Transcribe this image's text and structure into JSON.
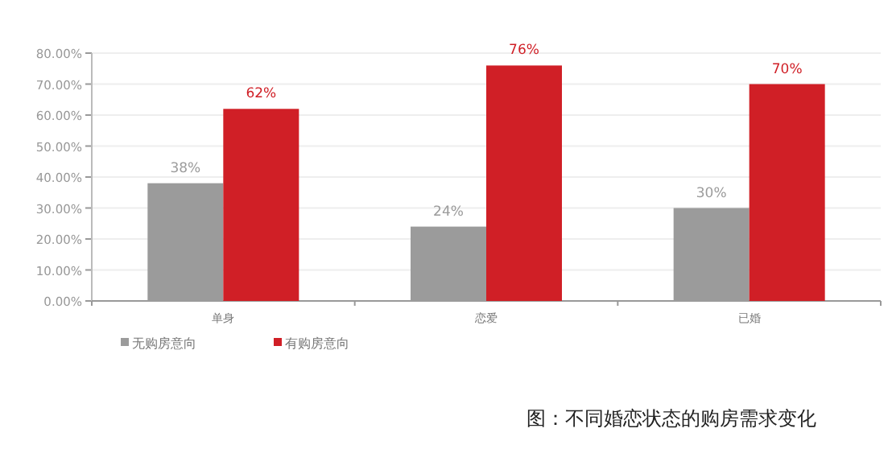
{
  "chart_data": {
    "type": "bar",
    "categories": [
      "单身",
      "恋爱",
      "已婚"
    ],
    "series": [
      {
        "name": "无购房意向",
        "color": "#9b9b9b",
        "values": [
          38,
          24,
          30
        ],
        "value_labels": [
          "38%",
          "24%",
          "30%"
        ]
      },
      {
        "name": "有购房意向",
        "color": "#d01f26",
        "values": [
          62,
          76,
          70
        ],
        "value_labels": [
          "62%",
          "76%",
          "70%"
        ]
      }
    ],
    "ylim": [
      0,
      80
    ],
    "yticks": [
      {
        "value": 0,
        "label": "0.00%"
      },
      {
        "value": 10,
        "label": "10.00%"
      },
      {
        "value": 20,
        "label": "20.00%"
      },
      {
        "value": 30,
        "label": "30.00%"
      },
      {
        "value": 40,
        "label": "40.00%"
      },
      {
        "value": 50,
        "label": "50.00%"
      },
      {
        "value": 60,
        "label": "60.00%"
      },
      {
        "value": 70,
        "label": "70.00%"
      },
      {
        "value": 80,
        "label": "80.00%"
      }
    ],
    "grid": "y",
    "legend": "bottom left",
    "annotations": [
      "图：不同婚恋状态的购房需求变化"
    ]
  }
}
